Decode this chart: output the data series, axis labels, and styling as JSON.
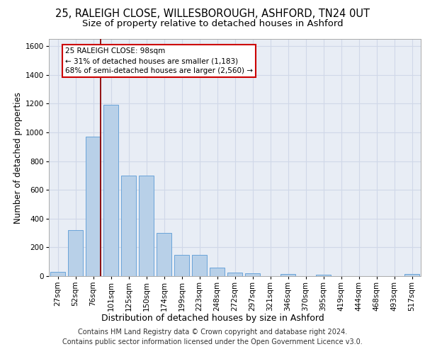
{
  "title": "25, RALEIGH CLOSE, WILLESBOROUGH, ASHFORD, TN24 0UT",
  "subtitle": "Size of property relative to detached houses in Ashford",
  "xlabel": "Distribution of detached houses by size in Ashford",
  "ylabel": "Number of detached properties",
  "footer_line1": "Contains HM Land Registry data © Crown copyright and database right 2024.",
  "footer_line2": "Contains public sector information licensed under the Open Government Licence v3.0.",
  "categories": [
    "27sqm",
    "52sqm",
    "76sqm",
    "101sqm",
    "125sqm",
    "150sqm",
    "174sqm",
    "199sqm",
    "223sqm",
    "248sqm",
    "272sqm",
    "297sqm",
    "321sqm",
    "346sqm",
    "370sqm",
    "395sqm",
    "419sqm",
    "444sqm",
    "468sqm",
    "493sqm",
    "517sqm"
  ],
  "values": [
    30,
    320,
    970,
    1190,
    700,
    700,
    300,
    150,
    150,
    60,
    25,
    20,
    0,
    15,
    0,
    10,
    0,
    0,
    0,
    0,
    15
  ],
  "bar_color": "#b8d0e8",
  "bar_edge_color": "#5b9bd5",
  "annotation_line1": "25 RALEIGH CLOSE: 98sqm",
  "annotation_line2": "← 31% of detached houses are smaller (1,183)",
  "annotation_line3": "68% of semi-detached houses are larger (2,560) →",
  "vline_x": 2.42,
  "ylim": [
    0,
    1650
  ],
  "yticks": [
    0,
    200,
    400,
    600,
    800,
    1000,
    1200,
    1400,
    1600
  ],
  "bg_color": "#e8edf5",
  "grid_color": "#d0d8e8",
  "title_fontsize": 10.5,
  "subtitle_fontsize": 9.5,
  "ylabel_fontsize": 8.5,
  "xlabel_fontsize": 9,
  "tick_fontsize": 7.5,
  "ann_fontsize": 7.5,
  "footer_fontsize": 7
}
